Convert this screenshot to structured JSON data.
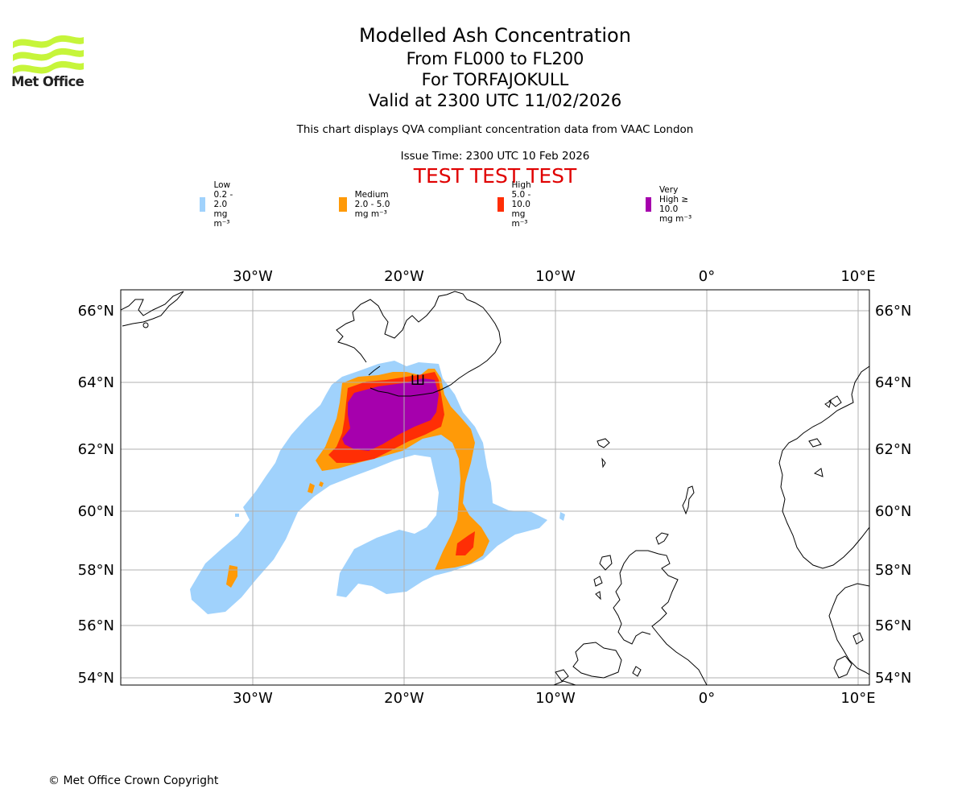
{
  "branding": {
    "logo_text": "Met Office",
    "logo_color": "#c6f53a"
  },
  "title": {
    "main": "Modelled Ash Concentration",
    "levels": "From FL000 to FL200",
    "volcano": "For TORFAJOKULL",
    "valid": "Valid at 2300 UTC 11/02/2026",
    "description": "This chart displays QVA compliant concentration data from VAAC London",
    "issue": "Issue Time: 2300 UTC 10 Feb 2026",
    "test_banner": "TEST TEST TEST"
  },
  "legend": [
    {
      "label": "Low 0.2 - 2.0 mg m⁻³",
      "color": "#a0d2fc"
    },
    {
      "label": "Medium 2.0 - 5.0 mg m⁻³",
      "color": "#ff9a08"
    },
    {
      "label": "High 5.0 - 10.0 mg m⁻³",
      "color": "#ff2e05"
    },
    {
      "label": "Very High ≥ 10.0 mg m⁻³",
      "color": "#a600ad"
    }
  ],
  "map": {
    "lon_labels": [
      "30°W",
      "20°W",
      "10°W",
      "0°",
      "10°E"
    ],
    "lat_labels": [
      "66°N",
      "64°N",
      "62°N",
      "60°N",
      "58°N",
      "56°N",
      "54°N"
    ],
    "volcano_symbol": "Ш"
  },
  "footer": {
    "copyright": "© Met Office Crown Copyright"
  }
}
